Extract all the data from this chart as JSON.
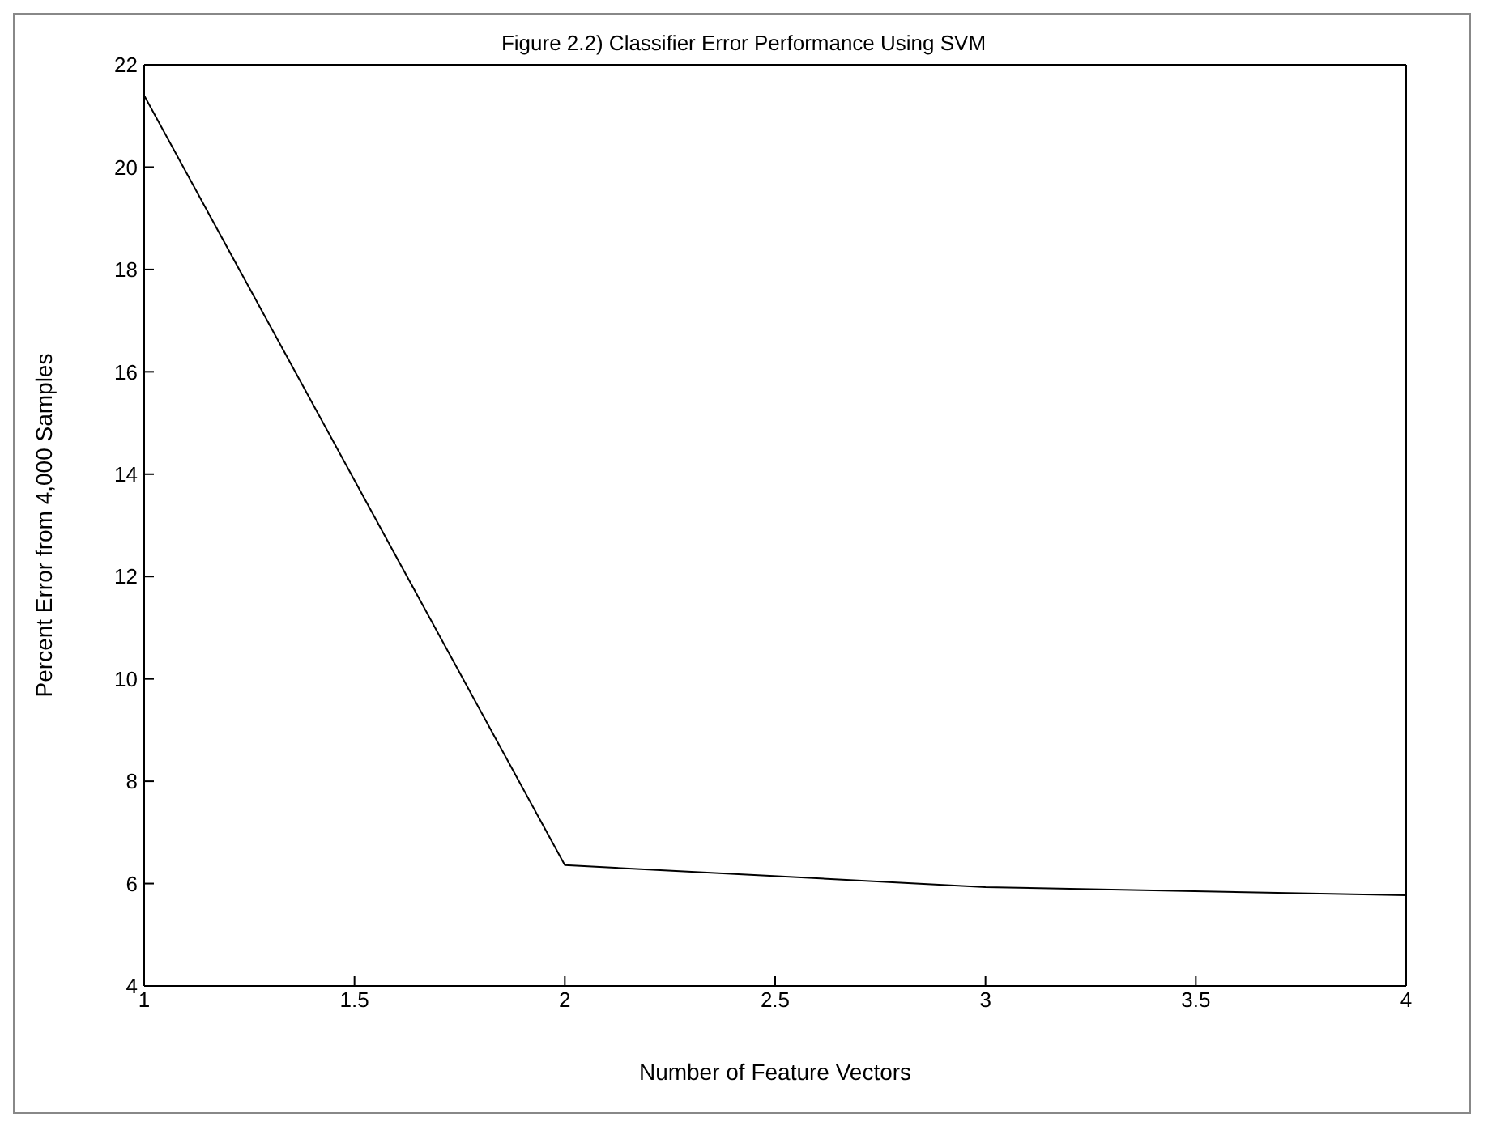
{
  "chart_data": {
    "type": "line",
    "title": "Figure 2.2) Classifier Error Performance Using SVM",
    "xlabel": "Number of Feature Vectors",
    "ylabel": "Percent Error from 4,000 Samples",
    "x": [
      1,
      2,
      3,
      4
    ],
    "series": [
      {
        "color": "#000000",
        "values": [
          21.4,
          6.36,
          5.93,
          5.77
        ]
      }
    ],
    "xlim": [
      1,
      4
    ],
    "xticks": [
      1,
      1.5,
      2,
      2.5,
      3,
      3.5,
      4
    ],
    "ylim": [
      4,
      22
    ],
    "yticks": [
      4,
      6,
      8,
      10,
      12,
      14,
      16,
      18,
      20,
      22
    ],
    "grid": false,
    "legend": false,
    "marker": "none",
    "line_style": "solid"
  }
}
